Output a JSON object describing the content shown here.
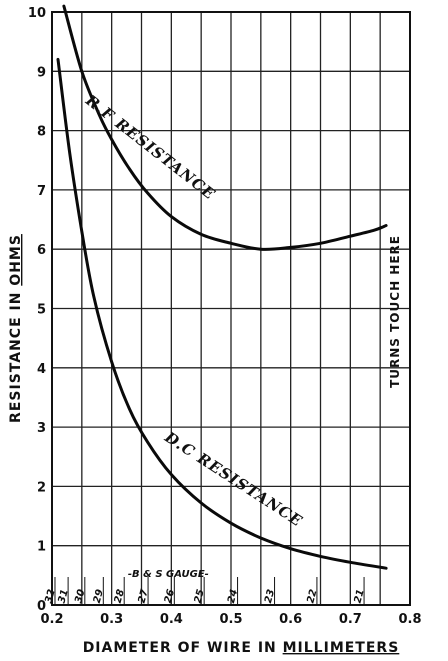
{
  "chart_data": {
    "type": "line",
    "xlabel": "DIAMETER OF WIRE IN MILLIMETERS",
    "xlabel_prefix": "DIAMETER OF WIRE IN",
    "xlabel_underlined": "MILLIMETERS",
    "ylabel_prefix": "RESISTANCE IN",
    "ylabel_underlined": "OHMS",
    "xlim": [
      0.2,
      0.8
    ],
    "ylim": [
      0,
      10
    ],
    "grid": true,
    "x_tick_labels": [
      "0.2",
      "0.3",
      "0.4",
      "0.5",
      "0.6",
      "0.7",
      "0.8"
    ],
    "y_tick_labels": [
      "0",
      "1",
      "2",
      "3",
      "4",
      "5",
      "6",
      "7",
      "8",
      "9",
      "10"
    ],
    "gauge_scale": {
      "title": "-B & S GAUGE-",
      "ticks": [
        {
          "label": "32",
          "x": 0.205
        },
        {
          "label": "31",
          "x": 0.227
        },
        {
          "label": "30",
          "x": 0.255
        },
        {
          "label": "29",
          "x": 0.286
        },
        {
          "label": "28",
          "x": 0.321
        },
        {
          "label": "27",
          "x": 0.361
        },
        {
          "label": "26",
          "x": 0.405
        },
        {
          "label": "25",
          "x": 0.455
        },
        {
          "label": "24",
          "x": 0.511
        },
        {
          "label": "23",
          "x": 0.573
        },
        {
          "label": "22",
          "x": 0.644
        },
        {
          "label": "21",
          "x": 0.723
        }
      ]
    },
    "annotation": {
      "text": "TURNS TOUCH HERE",
      "x": 0.775
    },
    "series": [
      {
        "name": "R.F RESISTANCE",
        "points": [
          [
            0.22,
            10.1
          ],
          [
            0.25,
            9.0
          ],
          [
            0.28,
            8.25
          ],
          [
            0.3,
            7.85
          ],
          [
            0.33,
            7.35
          ],
          [
            0.36,
            6.95
          ],
          [
            0.4,
            6.55
          ],
          [
            0.45,
            6.25
          ],
          [
            0.5,
            6.1
          ],
          [
            0.55,
            6.0
          ],
          [
            0.6,
            6.03
          ],
          [
            0.65,
            6.1
          ],
          [
            0.7,
            6.22
          ],
          [
            0.74,
            6.32
          ],
          [
            0.76,
            6.4
          ]
        ]
      },
      {
        "name": "D.C RESISTANCE",
        "points": [
          [
            0.21,
            9.2
          ],
          [
            0.23,
            7.6
          ],
          [
            0.25,
            6.3
          ],
          [
            0.27,
            5.2
          ],
          [
            0.3,
            4.1
          ],
          [
            0.33,
            3.3
          ],
          [
            0.36,
            2.75
          ],
          [
            0.4,
            2.2
          ],
          [
            0.45,
            1.72
          ],
          [
            0.5,
            1.38
          ],
          [
            0.55,
            1.13
          ],
          [
            0.6,
            0.95
          ],
          [
            0.65,
            0.82
          ],
          [
            0.7,
            0.72
          ],
          [
            0.76,
            0.62
          ]
        ]
      }
    ]
  }
}
